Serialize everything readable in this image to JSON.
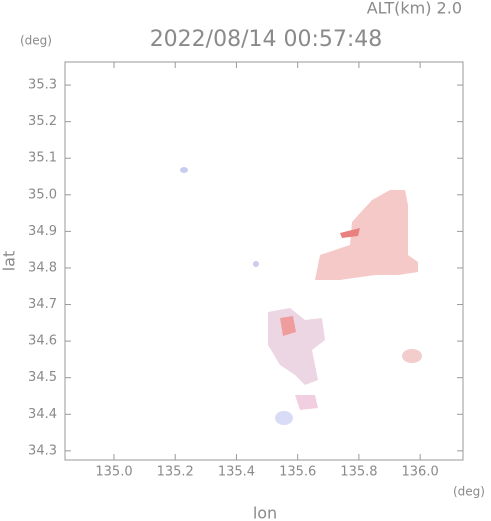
{
  "chart_data": {
    "type": "image",
    "title": "2022/08/14 00:57:48",
    "subtitle": "ALT(km) 2.0",
    "x_label": "lon",
    "x_unit": "(deg)",
    "y_label": "lat",
    "y_unit": "(deg)",
    "xlim": [
      134.84,
      136.14
    ],
    "ylim": [
      34.275,
      35.363
    ],
    "xticks": [
      {
        "value": 135,
        "label": "135.0"
      },
      135.2,
      135.4,
      135.6,
      135.8,
      {
        "value": 136,
        "label": "136.0"
      }
    ],
    "yticks": [
      34.3,
      34.4,
      34.5,
      34.6,
      34.7,
      34.8,
      34.9,
      {
        "value": 35,
        "label": "35.0"
      },
      35.1,
      35.2,
      35.3
    ]
  }
}
